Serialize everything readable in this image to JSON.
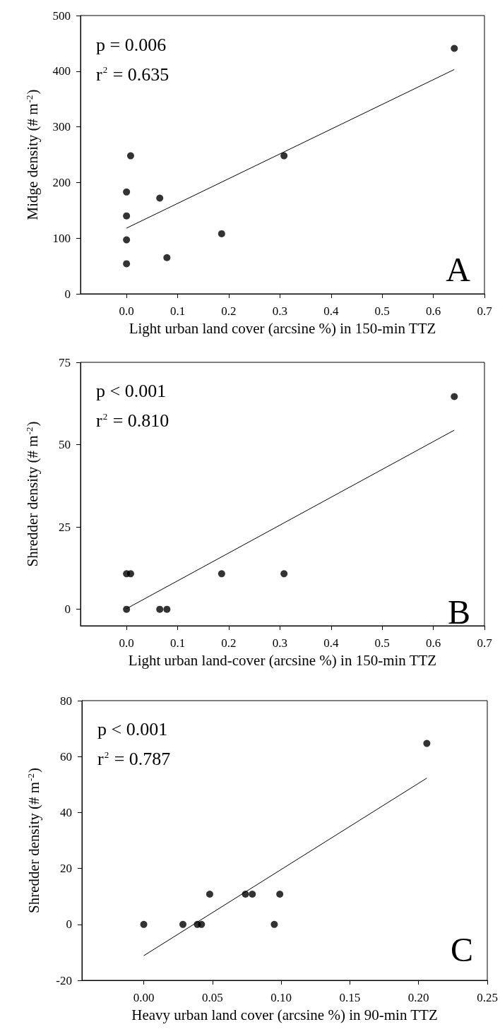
{
  "chart_data": [
    {
      "type": "scatter",
      "xlabel": "Light urban land cover (arcsine %) in 150-min TTZ",
      "ylabel": "Midge density (# m$^{-2}$)",
      "annotations": [
        "p = 0.006",
        "r$^{2}$ = 0.635",
        "A"
      ],
      "xlim": [
        -0.09,
        0.7
      ],
      "ylim": [
        0,
        500
      ],
      "xticks": [
        {
          "value": 0,
          "label": "0.0"
        },
        0.1,
        0.2,
        0.3,
        0.4,
        0.5,
        0.6,
        0.7
      ],
      "yticks": [
        0,
        100,
        200,
        300,
        400,
        500
      ],
      "grid": false,
      "series": [
        {
          "type": "scatter",
          "color": "#000000",
          "marker": "circle",
          "x": [
            0,
            0,
            0,
            0,
            0.008,
            0.065,
            0.079,
            0.186,
            0.308,
            0.641
          ],
          "values": [
            54,
            97,
            140,
            183,
            248,
            172,
            65,
            108,
            248,
            441
          ]
        },
        {
          "type": "line",
          "color": "#000000",
          "marker": "none",
          "line_style": "solid",
          "x": [
            0,
            0.641
          ],
          "values": [
            118,
            403
          ]
        }
      ]
    },
    {
      "type": "scatter",
      "xlabel": "Light urban land-cover (arcsine %) in 150-min TTZ",
      "ylabel": "Shredder density (# m$^{-2}$)",
      "annotations": [
        "p < 0.001",
        "r$^{2}$ = 0.810",
        "B"
      ],
      "xlim": [
        -0.09,
        0.7
      ],
      "ylim": [
        -5,
        75
      ],
      "xticks": [
        {
          "value": 0,
          "label": "0.0"
        },
        0.1,
        0.2,
        0.3,
        0.4,
        0.5,
        0.6,
        0.7
      ],
      "yticks": [
        0,
        25,
        50,
        75
      ],
      "grid": false,
      "series": [
        {
          "type": "scatter",
          "color": "#000000",
          "marker": "circle",
          "x": [
            0,
            0,
            0.008,
            0.065,
            0.079,
            0.186,
            0.308,
            0.641
          ],
          "values": [
            0,
            10.8,
            10.8,
            0,
            0,
            10.8,
            10.8,
            64.6
          ]
        },
        {
          "type": "line",
          "color": "#000000",
          "marker": "none",
          "line_style": "solid",
          "x": [
            0,
            0.641
          ],
          "values": [
            0.2,
            54.4
          ]
        }
      ]
    },
    {
      "type": "scatter",
      "xlabel": "Heavy urban land cover (arcsine %) in 90-min TTZ",
      "ylabel": "Shredder density (# m$^{-2}$)",
      "annotations": [
        "p < 0.001",
        "r$^{2}$ = 0.787",
        "C"
      ],
      "xlim": [
        -0.045,
        0.25
      ],
      "ylim": [
        -20,
        80
      ],
      "xticks": [
        {
          "value": 0,
          "label": "0.00"
        },
        0.05,
        {
          "value": 0.1,
          "label": "0.10"
        },
        0.15,
        {
          "value": 0.2,
          "label": "0.20"
        },
        0.25
      ],
      "yticks": [
        -20,
        0,
        20,
        40,
        60,
        80
      ],
      "grid": false,
      "series": [
        {
          "type": "scatter",
          "color": "#000000",
          "marker": "circle",
          "x": [
            0,
            0.0285,
            0.039,
            0.042,
            0.048,
            0.074,
            0.079,
            0.099,
            0.095,
            0.206
          ],
          "values": [
            0,
            0,
            0,
            0,
            10.8,
            10.8,
            10.8,
            10.8,
            0,
            64.7
          ]
        },
        {
          "type": "line",
          "color": "#000000",
          "marker": "none",
          "line_style": "solid",
          "x": [
            0,
            0.206
          ],
          "values": [
            -11.2,
            52.3
          ]
        }
      ]
    }
  ]
}
